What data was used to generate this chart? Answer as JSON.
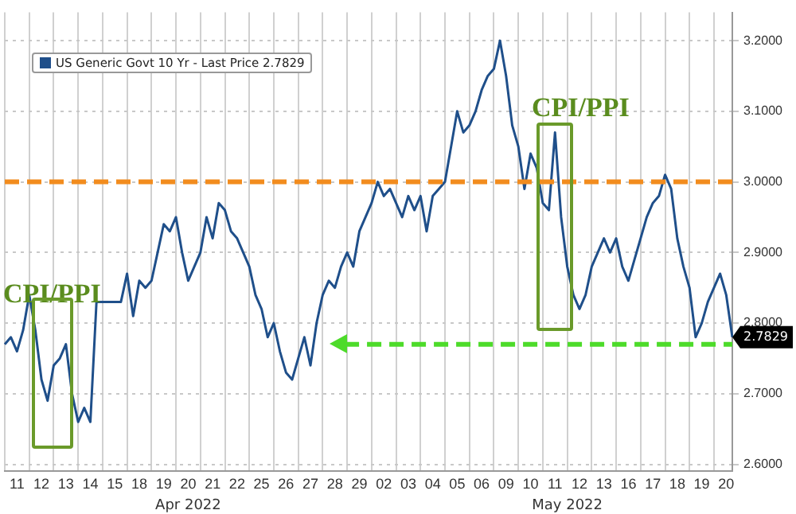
{
  "chart_data": {
    "type": "line",
    "categories": [
      null,
      null,
      "11",
      null,
      null,
      null,
      "12",
      null,
      null,
      null,
      "13",
      null,
      null,
      null,
      "14",
      null,
      null,
      null,
      "15",
      null,
      null,
      null,
      "18",
      null,
      null,
      null,
      "19",
      null,
      null,
      null,
      "20",
      null,
      null,
      null,
      "21",
      null,
      null,
      null,
      "22",
      null,
      null,
      null,
      "25",
      null,
      null,
      null,
      "26",
      null,
      null,
      null,
      "27",
      null,
      null,
      null,
      "28",
      null,
      null,
      null,
      "29",
      null,
      null,
      null,
      "02",
      null,
      null,
      null,
      "03",
      null,
      null,
      null,
      "04",
      null,
      null,
      null,
      "05",
      null,
      null,
      null,
      "06",
      null,
      null,
      null,
      "09",
      null,
      null,
      null,
      "10",
      null,
      null,
      null,
      "11",
      null,
      null,
      null,
      "12",
      null,
      null,
      null,
      "13",
      null,
      null,
      null,
      "16",
      null,
      null,
      null,
      "17",
      null,
      null,
      null,
      "18",
      null,
      null,
      null,
      "19",
      null,
      null,
      null,
      "20",
      null
    ],
    "series": [
      {
        "name": "US Generic Govt 10 Yr - Last Price 2.7829",
        "color": "#1f4f8a",
        "values": [
          2.77,
          2.78,
          2.76,
          2.79,
          2.84,
          2.79,
          2.72,
          2.69,
          2.74,
          2.75,
          2.77,
          2.7,
          2.66,
          2.68,
          2.66,
          2.83,
          2.83,
          2.83,
          2.83,
          2.83,
          2.87,
          2.81,
          2.86,
          2.85,
          2.86,
          2.9,
          2.94,
          2.93,
          2.95,
          2.9,
          2.86,
          2.88,
          2.9,
          2.95,
          2.92,
          2.97,
          2.96,
          2.93,
          2.92,
          2.9,
          2.88,
          2.84,
          2.82,
          2.78,
          2.8,
          2.76,
          2.73,
          2.72,
          2.75,
          2.78,
          2.74,
          2.8,
          2.84,
          2.86,
          2.85,
          2.88,
          2.9,
          2.88,
          2.93,
          2.95,
          2.97,
          3.0,
          2.98,
          2.99,
          2.97,
          2.95,
          2.98,
          2.96,
          2.98,
          2.93,
          2.98,
          2.99,
          3.0,
          3.05,
          3.1,
          3.07,
          3.08,
          3.1,
          3.13,
          3.15,
          3.16,
          3.2,
          3.15,
          3.08,
          3.05,
          2.99,
          3.04,
          3.02,
          2.97,
          2.96,
          3.07,
          2.95,
          2.88,
          2.84,
          2.82,
          2.84,
          2.88,
          2.9,
          2.92,
          2.9,
          2.92,
          2.88,
          2.86,
          2.89,
          2.92,
          2.95,
          2.97,
          2.98,
          3.01,
          2.99,
          2.92,
          2.88,
          2.85,
          2.78,
          2.8,
          2.83,
          2.85,
          2.87,
          2.84,
          2.78
        ]
      }
    ],
    "ylim": [
      2.59,
      3.24
    ],
    "yticks": [
      {
        "value": 2.6,
        "label": "2.6000"
      },
      {
        "value": 2.7,
        "label": "2.7000"
      },
      {
        "value": 2.8,
        "label": "2.8000"
      },
      {
        "value": 2.9,
        "label": "2.9000"
      },
      {
        "value": 3.0,
        "label": "3.0000"
      },
      {
        "value": 3.1,
        "label": "3.1000"
      },
      {
        "value": 3.2,
        "label": "3.2000"
      }
    ],
    "grid": true,
    "legend": "top left",
    "marker": "none",
    "line_style": "solid",
    "ref_lines": [
      {
        "axis": "y",
        "value": 3.0,
        "color": "#f28c1e",
        "line_style": "dashed"
      },
      {
        "axis": "y",
        "value": 2.77,
        "color": "#4ddb2a",
        "line_style": "dashed"
      }
    ],
    "annotations": [
      "CPI/PPI",
      "CPI/PPI",
      "Apr 2022",
      "May 2022",
      "2.7829"
    ]
  }
}
